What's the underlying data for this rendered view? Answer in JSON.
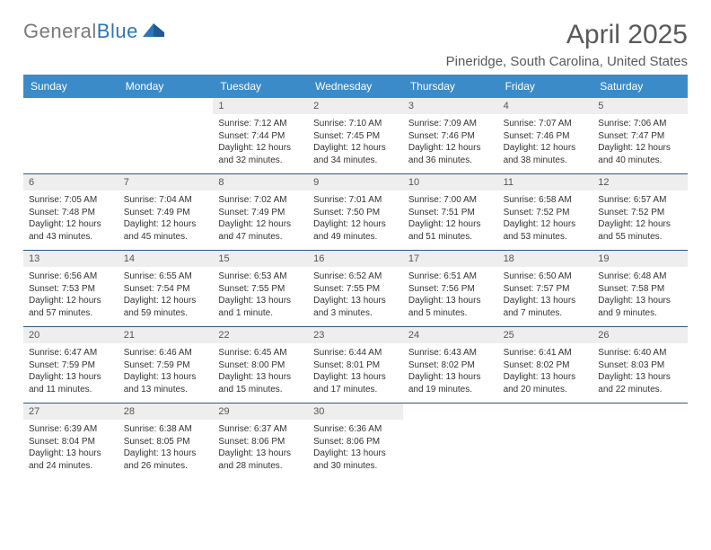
{
  "logo": {
    "text_general": "General",
    "text_blue": "Blue"
  },
  "title": "April 2025",
  "location": "Pineridge, South Carolina, United States",
  "colors": {
    "header_bg": "#3b8bc9",
    "header_text": "#ffffff",
    "daynum_bg": "#eeeeee",
    "week_divider": "#2e5b86",
    "text": "#333333",
    "title_text": "#595959",
    "logo_gray": "#7a7a7a",
    "logo_blue": "#2e75b6"
  },
  "day_headers": [
    "Sunday",
    "Monday",
    "Tuesday",
    "Wednesday",
    "Thursday",
    "Friday",
    "Saturday"
  ],
  "weeks": [
    [
      {
        "empty": true
      },
      {
        "empty": true
      },
      {
        "n": "1",
        "sr": "7:12 AM",
        "ss": "7:44 PM",
        "dl": "12 hours and 32 minutes."
      },
      {
        "n": "2",
        "sr": "7:10 AM",
        "ss": "7:45 PM",
        "dl": "12 hours and 34 minutes."
      },
      {
        "n": "3",
        "sr": "7:09 AM",
        "ss": "7:46 PM",
        "dl": "12 hours and 36 minutes."
      },
      {
        "n": "4",
        "sr": "7:07 AM",
        "ss": "7:46 PM",
        "dl": "12 hours and 38 minutes."
      },
      {
        "n": "5",
        "sr": "7:06 AM",
        "ss": "7:47 PM",
        "dl": "12 hours and 40 minutes."
      }
    ],
    [
      {
        "n": "6",
        "sr": "7:05 AM",
        "ss": "7:48 PM",
        "dl": "12 hours and 43 minutes."
      },
      {
        "n": "7",
        "sr": "7:04 AM",
        "ss": "7:49 PM",
        "dl": "12 hours and 45 minutes."
      },
      {
        "n": "8",
        "sr": "7:02 AM",
        "ss": "7:49 PM",
        "dl": "12 hours and 47 minutes."
      },
      {
        "n": "9",
        "sr": "7:01 AM",
        "ss": "7:50 PM",
        "dl": "12 hours and 49 minutes."
      },
      {
        "n": "10",
        "sr": "7:00 AM",
        "ss": "7:51 PM",
        "dl": "12 hours and 51 minutes."
      },
      {
        "n": "11",
        "sr": "6:58 AM",
        "ss": "7:52 PM",
        "dl": "12 hours and 53 minutes."
      },
      {
        "n": "12",
        "sr": "6:57 AM",
        "ss": "7:52 PM",
        "dl": "12 hours and 55 minutes."
      }
    ],
    [
      {
        "n": "13",
        "sr": "6:56 AM",
        "ss": "7:53 PM",
        "dl": "12 hours and 57 minutes."
      },
      {
        "n": "14",
        "sr": "6:55 AM",
        "ss": "7:54 PM",
        "dl": "12 hours and 59 minutes."
      },
      {
        "n": "15",
        "sr": "6:53 AM",
        "ss": "7:55 PM",
        "dl": "13 hours and 1 minute."
      },
      {
        "n": "16",
        "sr": "6:52 AM",
        "ss": "7:55 PM",
        "dl": "13 hours and 3 minutes."
      },
      {
        "n": "17",
        "sr": "6:51 AM",
        "ss": "7:56 PM",
        "dl": "13 hours and 5 minutes."
      },
      {
        "n": "18",
        "sr": "6:50 AM",
        "ss": "7:57 PM",
        "dl": "13 hours and 7 minutes."
      },
      {
        "n": "19",
        "sr": "6:48 AM",
        "ss": "7:58 PM",
        "dl": "13 hours and 9 minutes."
      }
    ],
    [
      {
        "n": "20",
        "sr": "6:47 AM",
        "ss": "7:59 PM",
        "dl": "13 hours and 11 minutes."
      },
      {
        "n": "21",
        "sr": "6:46 AM",
        "ss": "7:59 PM",
        "dl": "13 hours and 13 minutes."
      },
      {
        "n": "22",
        "sr": "6:45 AM",
        "ss": "8:00 PM",
        "dl": "13 hours and 15 minutes."
      },
      {
        "n": "23",
        "sr": "6:44 AM",
        "ss": "8:01 PM",
        "dl": "13 hours and 17 minutes."
      },
      {
        "n": "24",
        "sr": "6:43 AM",
        "ss": "8:02 PM",
        "dl": "13 hours and 19 minutes."
      },
      {
        "n": "25",
        "sr": "6:41 AM",
        "ss": "8:02 PM",
        "dl": "13 hours and 20 minutes."
      },
      {
        "n": "26",
        "sr": "6:40 AM",
        "ss": "8:03 PM",
        "dl": "13 hours and 22 minutes."
      }
    ],
    [
      {
        "n": "27",
        "sr": "6:39 AM",
        "ss": "8:04 PM",
        "dl": "13 hours and 24 minutes."
      },
      {
        "n": "28",
        "sr": "6:38 AM",
        "ss": "8:05 PM",
        "dl": "13 hours and 26 minutes."
      },
      {
        "n": "29",
        "sr": "6:37 AM",
        "ss": "8:06 PM",
        "dl": "13 hours and 28 minutes."
      },
      {
        "n": "30",
        "sr": "6:36 AM",
        "ss": "8:06 PM",
        "dl": "13 hours and 30 minutes."
      },
      {
        "empty": true
      },
      {
        "empty": true
      },
      {
        "empty": true
      }
    ]
  ],
  "labels": {
    "sunrise": "Sunrise:",
    "sunset": "Sunset:",
    "daylight": "Daylight:"
  }
}
